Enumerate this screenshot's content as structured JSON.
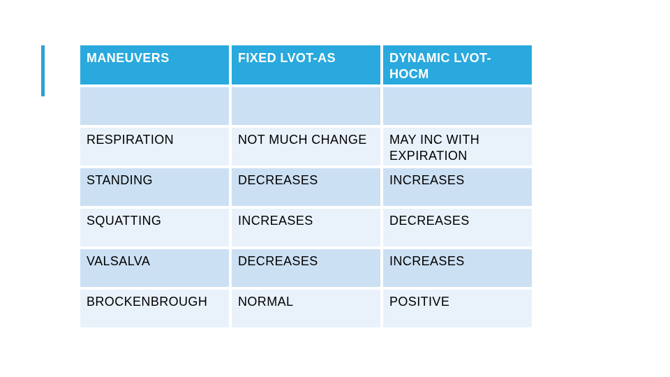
{
  "slide": {
    "background": "#ffffff",
    "accent_bar_color": "#2fa0d2"
  },
  "table": {
    "header_bg": "#29a9dd",
    "header_text_color": "#ffffff",
    "row_bg_dark": "#cce0f3",
    "row_bg_light": "#e9f1fa",
    "body_text_color": "#000000",
    "columns": [
      "MANEUVERS",
      "FIXED LVOT-AS",
      "DYNAMIC LVOT-HOCM"
    ],
    "rows": [
      [
        "",
        "",
        ""
      ],
      [
        "RESPIRATION",
        "NOT MUCH CHANGE",
        "MAY INC WITH EXPIRATION"
      ],
      [
        "STANDING",
        "DECREASES",
        "INCREASES"
      ],
      [
        "SQUATTING",
        "INCREASES",
        "DECREASES"
      ],
      [
        "VALSALVA",
        "DECREASES",
        "INCREASES"
      ],
      [
        "BROCKENBROUGH",
        "NORMAL",
        "POSITIVE"
      ]
    ]
  }
}
